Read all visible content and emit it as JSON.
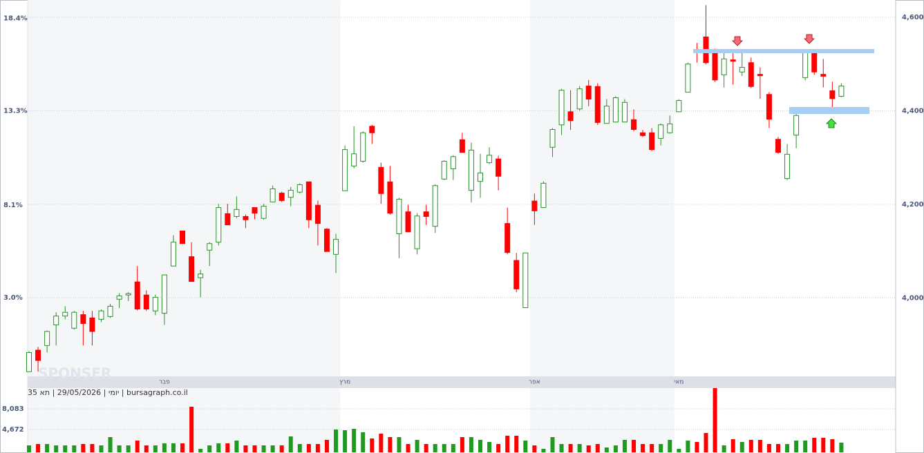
{
  "chart_data": {
    "type": "candlestick",
    "categories": [
      null,
      null,
      null,
      null,
      null,
      null,
      null,
      null,
      null,
      null,
      null,
      null,
      null,
      null,
      null,
      "פבר",
      null,
      null,
      null,
      null,
      null,
      null,
      null,
      null,
      null,
      null,
      null,
      null,
      null,
      null,
      null,
      null,
      null,
      null,
      null,
      "מרץ",
      null,
      null,
      null,
      null,
      null,
      null,
      null,
      null,
      null,
      null,
      null,
      null,
      null,
      null,
      null,
      null,
      null,
      null,
      null,
      null,
      "אפר",
      null,
      null,
      null,
      null,
      null,
      null,
      null,
      null,
      null,
      null,
      null,
      null,
      null,
      null,
      null,
      "מאי",
      null,
      null,
      null,
      null,
      null,
      null,
      null,
      null,
      null,
      null,
      null,
      null,
      null,
      null,
      null,
      null,
      null,
      null
    ],
    "open": [
      3842,
      3888,
      3898,
      3942,
      3961,
      3935,
      3964,
      3957,
      3954,
      3960,
      3997,
      4006,
      4034,
      4006,
      3972,
      3967,
      4068,
      4143,
      4088,
      4043,
      4102,
      4119,
      4180,
      4174,
      4174,
      4193,
      4170,
      4205,
      4224,
      4215,
      4226,
      4248,
      4198,
      4147,
      4093,
      4229,
      4282,
      4292,
      4367,
      4279,
      4248,
      4137,
      4184,
      4105,
      4184,
      4153,
      4254,
      4276,
      4338,
      4230,
      4249,
      4289,
      4297,
      4159,
      4080,
      3979,
      4207,
      4193,
      4322,
      4370,
      4398,
      4404,
      4453,
      4452,
      4373,
      4376,
      4376,
      4381,
      4353,
      4353,
      4341,
      4353,
      4398,
      4440,
      4527,
      4558,
      4530,
      4477,
      4509,
      4483,
      4503,
      4478,
      4435,
      4339,
      4255,
      4348,
      4471,
      4524,
      4478,
      4443,
      4431
    ],
    "high": [
      3886,
      3895,
      3930,
      3969,
      3982,
      3972,
      3972,
      3972,
      3975,
      3987,
      4010,
      4012,
      4068,
      4016,
      4007,
      4049,
      4134,
      4143,
      4119,
      4060,
      4119,
      4201,
      4201,
      4217,
      4178,
      4193,
      4201,
      4240,
      4227,
      4237,
      4245,
      4249,
      4208,
      4149,
      4137,
      4326,
      4367,
      4356,
      4370,
      4289,
      4282,
      4214,
      4199,
      4181,
      4199,
      4243,
      4294,
      4305,
      4353,
      4332,
      4308,
      4322,
      4304,
      4193,
      4096,
      4096,
      4223,
      4249,
      4363,
      4447,
      4444,
      4453,
      4466,
      4459,
      4425,
      4431,
      4425,
      4403,
      4359,
      4363,
      4373,
      4390,
      4425,
      4503,
      4545,
      4626,
      4533,
      4527,
      4524,
      4525,
      4514,
      4493,
      4440,
      4344,
      4329,
      4393,
      4528,
      4530,
      4511,
      4462,
      4459
    ],
    "low": [
      3842,
      3842,
      3883,
      3898,
      3954,
      3932,
      3898,
      3898,
      3948,
      3957,
      3978,
      3993,
      3973,
      3972,
      3963,
      3942,
      4068,
      4116,
      4035,
      4001,
      4068,
      4112,
      4156,
      4170,
      4149,
      4168,
      4167,
      4204,
      4205,
      4196,
      4223,
      4149,
      4112,
      4099,
      4053,
      4229,
      4277,
      4289,
      4329,
      4201,
      4178,
      4085,
      4140,
      4093,
      4156,
      4139,
      4252,
      4252,
      4311,
      4204,
      4214,
      4286,
      4230,
      4093,
      4012,
      3979,
      4156,
      4192,
      4301,
      4348,
      4359,
      4400,
      4410,
      4370,
      4373,
      4375,
      4375,
      4356,
      4344,
      4314,
      4326,
      4351,
      4397,
      4440,
      4503,
      4499,
      4462,
      4450,
      4456,
      4474,
      4449,
      4426,
      4363,
      4308,
      4252,
      4320,
      4465,
      4477,
      4450,
      4407,
      4429
    ],
    "close": [
      3883,
      3866,
      3928,
      3961,
      3969,
      3969,
      3945,
      3928,
      3972,
      3982,
      4004,
      4009,
      3976,
      3976,
      4001,
      4049,
      4119,
      4116,
      4035,
      4051,
      4116,
      4193,
      4156,
      4189,
      4167,
      4181,
      4196,
      4233,
      4208,
      4230,
      4242,
      4167,
      4159,
      4099,
      4125,
      4317,
      4308,
      4353,
      4353,
      4223,
      4181,
      4211,
      4141,
      4175,
      4174,
      4240,
      4292,
      4302,
      4311,
      4316,
      4267,
      4305,
      4260,
      4097,
      4019,
      4096,
      4186,
      4245,
      4360,
      4444,
      4379,
      4447,
      4425,
      4375,
      4410,
      4428,
      4418,
      4360,
      4347,
      4317,
      4370,
      4372,
      4422,
      4500,
      4524,
      4503,
      4466,
      4511,
      4506,
      4493,
      4452,
      4475,
      4382,
      4311,
      4307,
      4390,
      4525,
      4483,
      4474,
      4426,
      4453
    ],
    "volume": [
      2057,
      2284,
      2284,
      2057,
      2057,
      2057,
      2284,
      2284,
      2057,
      3421,
      2057,
      2057,
      2853,
      2057,
      2057,
      2398,
      2398,
      2398,
      8424,
      1488,
      2057,
      2398,
      2398,
      2853,
      2057,
      2057,
      2057,
      2057,
      2057,
      3535,
      2284,
      2284,
      2284,
      2967,
      4672,
      4558,
      4786,
      4217,
      3194,
      3990,
      3421,
      3421,
      2284,
      2967,
      2284,
      2284,
      2284,
      2284,
      3421,
      3421,
      2967,
      2625,
      2284,
      3649,
      3649,
      2853,
      2057,
      1488,
      3421,
      2284,
      2284,
      2284,
      2057,
      2284,
      1716,
      2057,
      2967,
      2967,
      2284,
      2284,
      2284,
      2967,
      1488,
      2853,
      2625,
      4103,
      11494,
      2057,
      3080,
      2625,
      2967,
      2967,
      2284,
      2284,
      2284,
      2853,
      2853,
      3308,
      3308,
      3080,
      2512
    ],
    "up_color": "#2a8f2a",
    "down_color": "#ff0000",
    "ylim": [
      3832,
      4637
    ],
    "yticks": [
      {
        "value": 4000,
        "label": "4,000"
      },
      {
        "value": 4200,
        "label": "4,200"
      },
      {
        "value": 4400,
        "label": "4,400"
      },
      {
        "value": 4600,
        "label": "4,600"
      }
    ],
    "y2lim": [
      -1.33,
      19.4
    ],
    "y2ticks": [
      {
        "value": 3.0,
        "label": "3.0%"
      },
      {
        "value": 8.1,
        "label": "8.1%"
      },
      {
        "value": 13.3,
        "label": "13.3%"
      },
      {
        "value": 18.4,
        "label": "18.4%"
      }
    ],
    "volume_ylim": [
      920,
      11494
    ],
    "volume_ticks": [
      {
        "value": 8083,
        "label": "8,083"
      },
      {
        "value": 4672,
        "label": "4,672"
      }
    ],
    "grid": true,
    "info": "יומי | 29/05/2026 | תא 35 | bursagraph.co.il",
    "watermark": "SPONSER"
  }
}
